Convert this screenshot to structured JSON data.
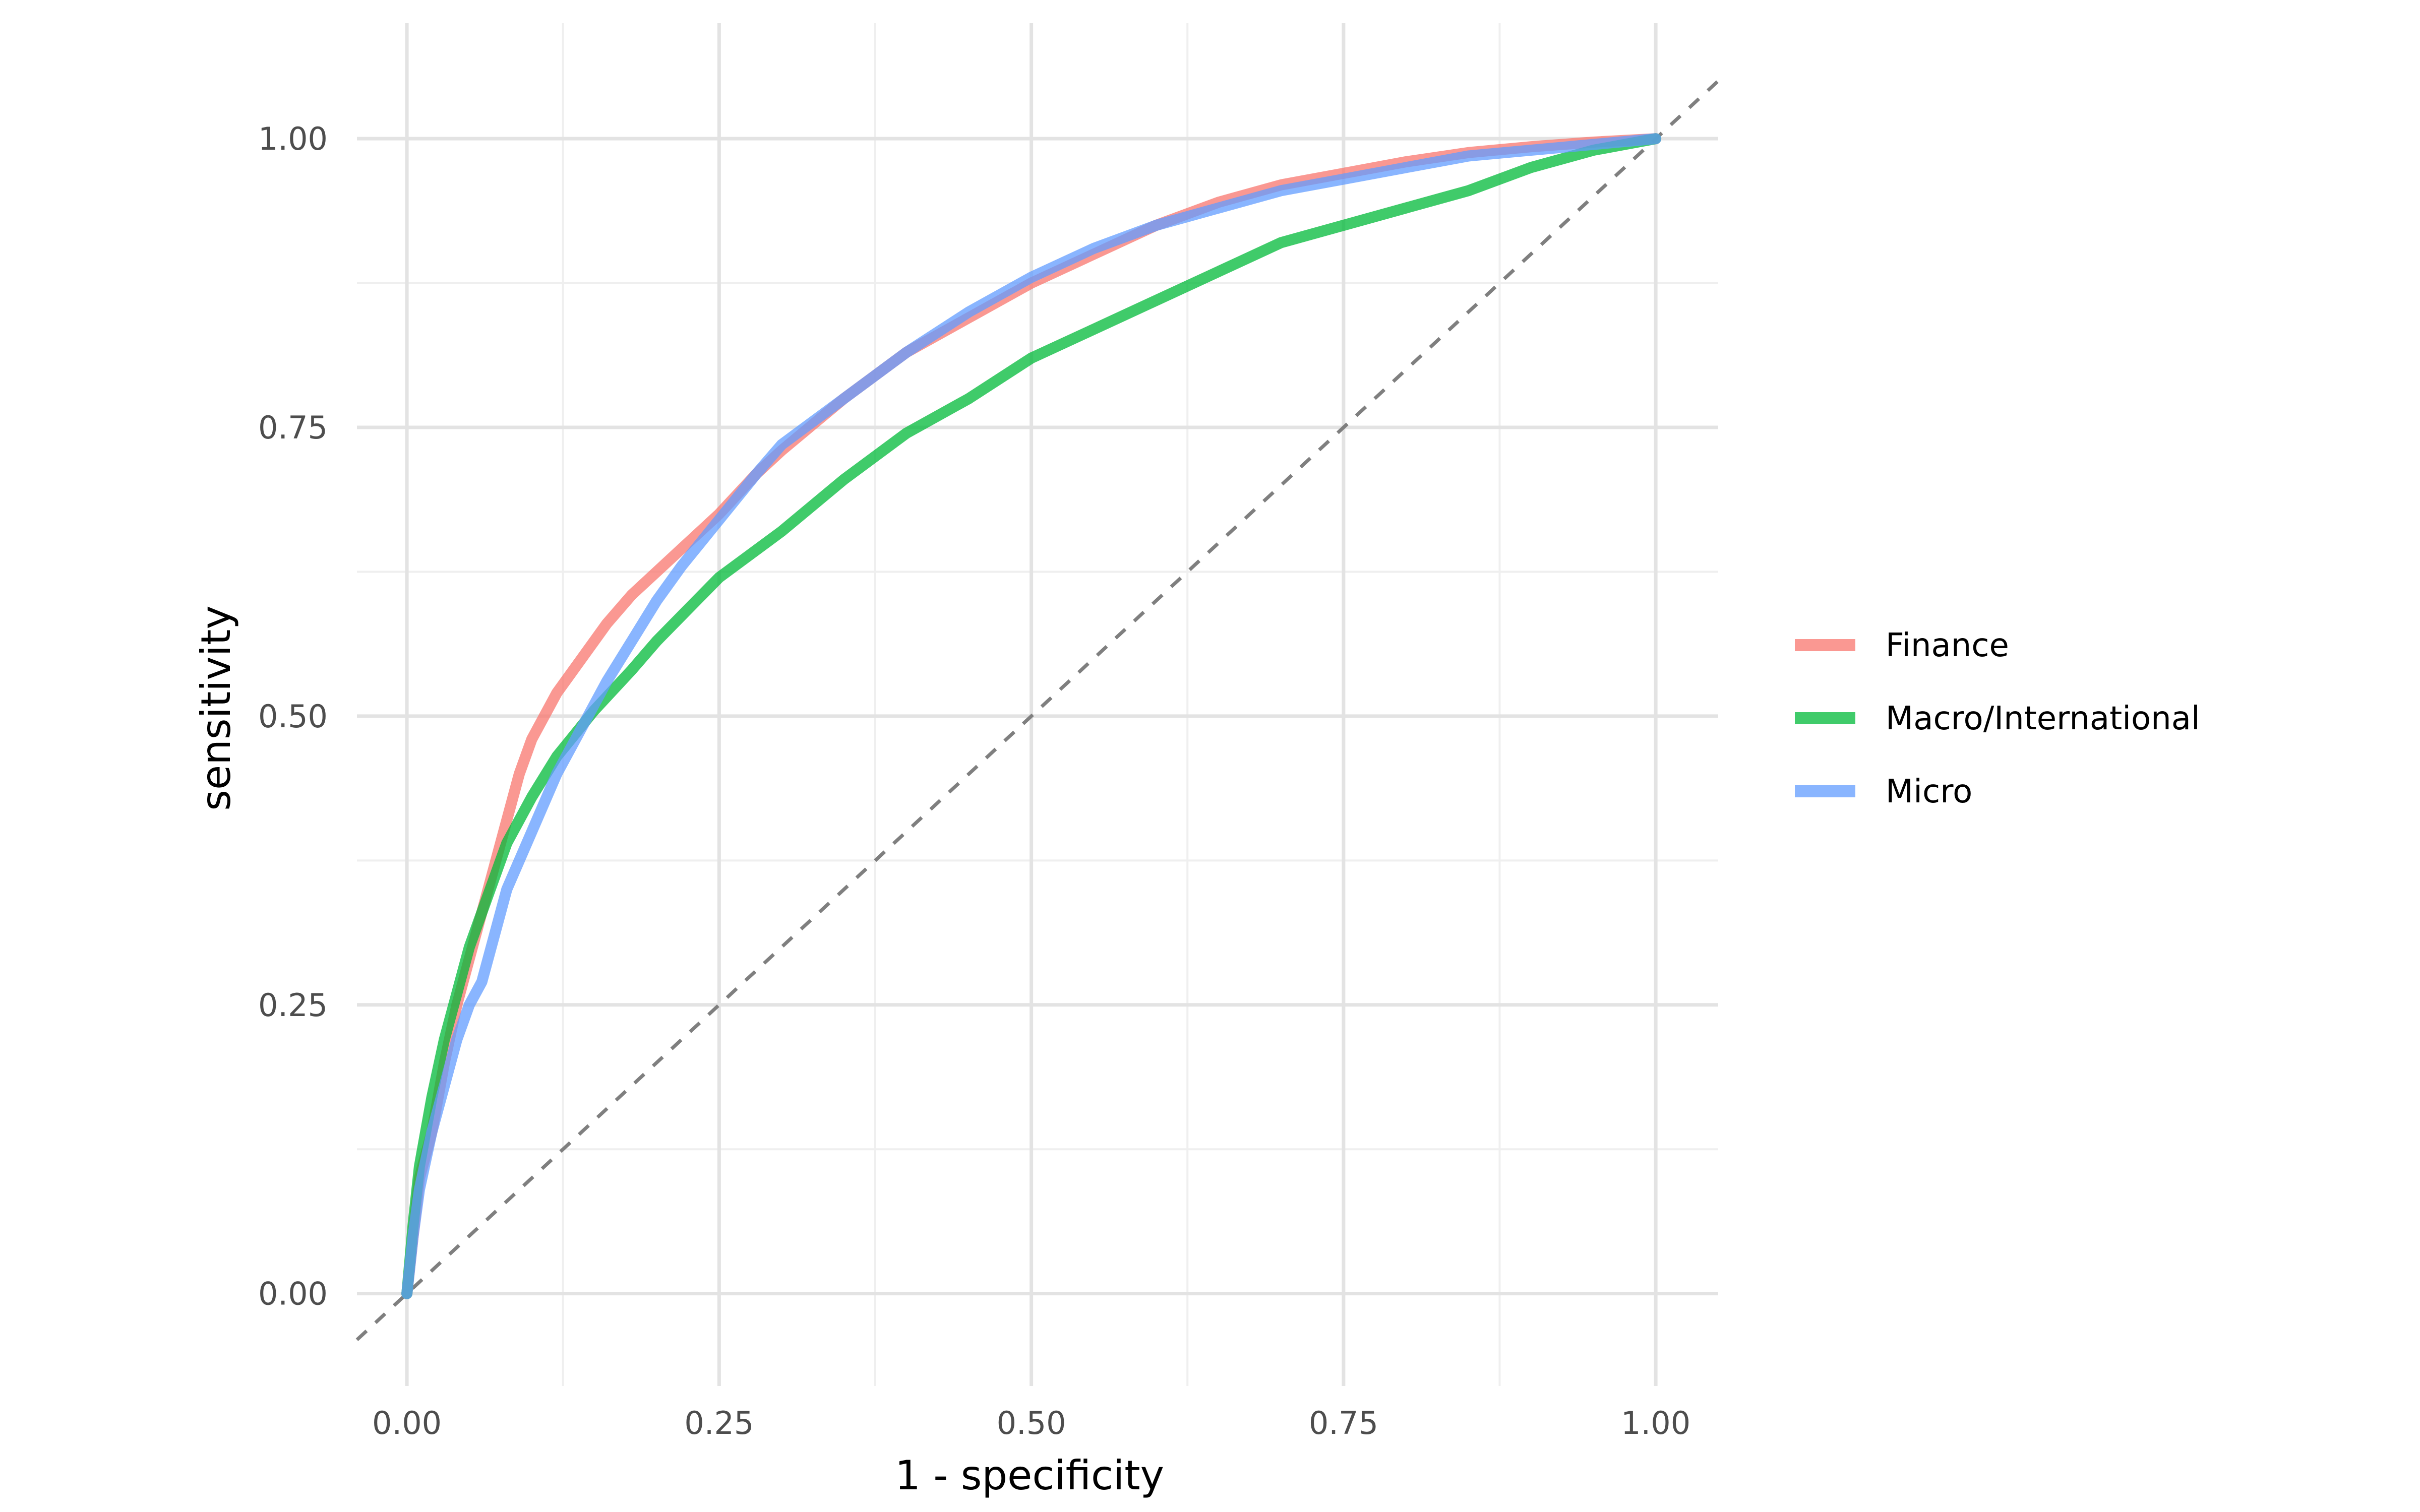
{
  "chart_data": {
    "type": "line",
    "title": "",
    "xlabel": "1 - specificity",
    "ylabel": "sensitivity",
    "xlim": [
      -0.04,
      1.05
    ],
    "ylim": [
      -0.08,
      1.1
    ],
    "xticks": [
      0.0,
      0.25,
      0.5,
      0.75,
      1.0
    ],
    "yticks": [
      0.0,
      0.25,
      0.5,
      0.75,
      1.0
    ],
    "xtick_labels": [
      "0.00",
      "0.25",
      "0.50",
      "0.75",
      "1.00"
    ],
    "ytick_labels": [
      "0.00",
      "0.25",
      "0.50",
      "0.75",
      "1.00"
    ],
    "grid": true,
    "legend": "right",
    "reference_line": {
      "style": "dashed",
      "color": "#7f7f7f",
      "from": [
        0,
        0
      ],
      "to": [
        1,
        1
      ]
    },
    "series": [
      {
        "name": "Finance",
        "color": "#F8766D",
        "points": [
          [
            0,
            0
          ],
          [
            0.005,
            0.05
          ],
          [
            0.01,
            0.1
          ],
          [
            0.02,
            0.14
          ],
          [
            0.03,
            0.2
          ],
          [
            0.04,
            0.25
          ],
          [
            0.05,
            0.29
          ],
          [
            0.06,
            0.33
          ],
          [
            0.07,
            0.37
          ],
          [
            0.08,
            0.41
          ],
          [
            0.09,
            0.45
          ],
          [
            0.1,
            0.48
          ],
          [
            0.12,
            0.52
          ],
          [
            0.14,
            0.55
          ],
          [
            0.16,
            0.58
          ],
          [
            0.18,
            0.605
          ],
          [
            0.2,
            0.625
          ],
          [
            0.22,
            0.645
          ],
          [
            0.25,
            0.675
          ],
          [
            0.28,
            0.71
          ],
          [
            0.3,
            0.73
          ],
          [
            0.35,
            0.775
          ],
          [
            0.4,
            0.815
          ],
          [
            0.45,
            0.845
          ],
          [
            0.5,
            0.875
          ],
          [
            0.55,
            0.9
          ],
          [
            0.6,
            0.925
          ],
          [
            0.65,
            0.945
          ],
          [
            0.7,
            0.96
          ],
          [
            0.75,
            0.97
          ],
          [
            0.8,
            0.98
          ],
          [
            0.85,
            0.988
          ],
          [
            0.9,
            0.993
          ],
          [
            0.95,
            0.997
          ],
          [
            1,
            1
          ]
        ]
      },
      {
        "name": "Macro/International",
        "color": "#00BA38",
        "points": [
          [
            0,
            0
          ],
          [
            0.005,
            0.06
          ],
          [
            0.01,
            0.11
          ],
          [
            0.02,
            0.17
          ],
          [
            0.03,
            0.22
          ],
          [
            0.04,
            0.26
          ],
          [
            0.05,
            0.3
          ],
          [
            0.06,
            0.33
          ],
          [
            0.07,
            0.36
          ],
          [
            0.08,
            0.39
          ],
          [
            0.1,
            0.43
          ],
          [
            0.12,
            0.465
          ],
          [
            0.15,
            0.505
          ],
          [
            0.18,
            0.54
          ],
          [
            0.2,
            0.565
          ],
          [
            0.25,
            0.62
          ],
          [
            0.3,
            0.66
          ],
          [
            0.35,
            0.705
          ],
          [
            0.4,
            0.745
          ],
          [
            0.45,
            0.775
          ],
          [
            0.5,
            0.81
          ],
          [
            0.55,
            0.835
          ],
          [
            0.6,
            0.86
          ],
          [
            0.65,
            0.885
          ],
          [
            0.7,
            0.91
          ],
          [
            0.75,
            0.925
          ],
          [
            0.8,
            0.94
          ],
          [
            0.85,
            0.955
          ],
          [
            0.9,
            0.975
          ],
          [
            0.95,
            0.99
          ],
          [
            1,
            1
          ]
        ]
      },
      {
        "name": "Micro",
        "color": "#619CFF",
        "points": [
          [
            0,
            0
          ],
          [
            0.005,
            0.05
          ],
          [
            0.01,
            0.09
          ],
          [
            0.02,
            0.14
          ],
          [
            0.03,
            0.18
          ],
          [
            0.04,
            0.22
          ],
          [
            0.05,
            0.25
          ],
          [
            0.06,
            0.27
          ],
          [
            0.07,
            0.31
          ],
          [
            0.08,
            0.35
          ],
          [
            0.1,
            0.4
          ],
          [
            0.12,
            0.45
          ],
          [
            0.14,
            0.49
          ],
          [
            0.16,
            0.53
          ],
          [
            0.18,
            0.565
          ],
          [
            0.2,
            0.6
          ],
          [
            0.22,
            0.63
          ],
          [
            0.25,
            0.67
          ],
          [
            0.28,
            0.71
          ],
          [
            0.3,
            0.735
          ],
          [
            0.35,
            0.775
          ],
          [
            0.4,
            0.815
          ],
          [
            0.45,
            0.85
          ],
          [
            0.5,
            0.88
          ],
          [
            0.55,
            0.905
          ],
          [
            0.6,
            0.925
          ],
          [
            0.65,
            0.94
          ],
          [
            0.7,
            0.955
          ],
          [
            0.75,
            0.965
          ],
          [
            0.8,
            0.975
          ],
          [
            0.85,
            0.985
          ],
          [
            0.9,
            0.99
          ],
          [
            0.95,
            0.995
          ],
          [
            1,
            1
          ]
        ]
      }
    ]
  }
}
